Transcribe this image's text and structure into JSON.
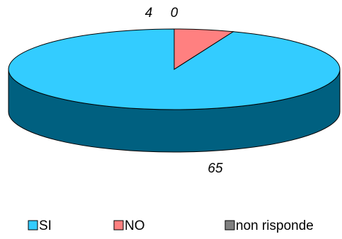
{
  "chart_data": {
    "type": "pie",
    "style": "3d",
    "categories": [
      "SI",
      "NO",
      "non risponde"
    ],
    "values": [
      65,
      4,
      0
    ],
    "colors": [
      "#33CCFF",
      "#FF8080",
      "#808080"
    ],
    "side_colors": [
      "#006080",
      "#7F4040",
      "#404040"
    ],
    "title": "",
    "legend": "bottom"
  }
}
